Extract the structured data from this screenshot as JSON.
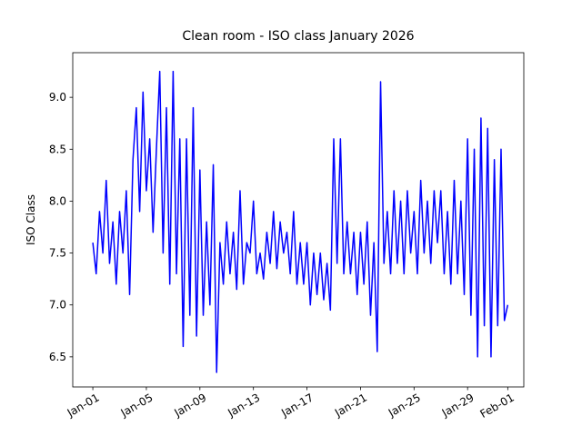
{
  "chart_data": {
    "type": "line",
    "title": "Clean room - ISO class January 2026",
    "y_label": "ISO Class",
    "color": "#0000ff",
    "x": [
      0,
      0.25,
      0.5,
      0.75,
      1,
      1.25,
      1.5,
      1.75,
      2,
      2.25,
      2.5,
      2.75,
      3,
      3.25,
      3.5,
      3.75,
      4,
      4.25,
      4.5,
      4.75,
      5,
      5.25,
      5.5,
      5.75,
      6,
      6.25,
      6.5,
      6.75,
      7,
      7.25,
      7.5,
      7.75,
      8,
      8.25,
      8.5,
      8.75,
      9,
      9.25,
      9.5,
      9.75,
      10,
      10.25,
      10.5,
      10.75,
      11,
      11.25,
      11.5,
      11.75,
      12,
      12.25,
      12.5,
      12.75,
      13,
      13.25,
      13.5,
      13.75,
      14,
      14.25,
      14.5,
      14.75,
      15,
      15.25,
      15.5,
      15.75,
      16,
      16.25,
      16.5,
      16.75,
      17,
      17.25,
      17.5,
      17.75,
      18,
      18.25,
      18.5,
      18.75,
      19,
      19.25,
      19.5,
      19.75,
      20,
      20.25,
      20.5,
      20.75,
      21,
      21.25,
      21.5,
      21.75,
      22,
      22.25,
      22.5,
      22.75,
      23,
      23.25,
      23.5,
      23.75,
      24,
      24.25,
      24.5,
      24.75,
      25,
      25.25,
      25.5,
      25.75,
      26,
      26.25,
      26.5,
      26.75,
      27,
      27.25,
      27.5,
      27.75,
      28,
      28.25,
      28.5,
      28.75,
      29,
      29.25,
      29.5,
      29.75,
      30,
      30.25,
      30.5,
      30.75,
      31
    ],
    "values": [
      7.6,
      7.3,
      7.9,
      7.5,
      8.2,
      7.4,
      7.8,
      7.2,
      7.9,
      7.5,
      8.1,
      7.1,
      8.4,
      8.9,
      7.9,
      9.05,
      8.1,
      8.6,
      7.7,
      8.5,
      9.25,
      7.5,
      8.9,
      7.2,
      9.25,
      7.3,
      8.6,
      6.6,
      8.6,
      6.9,
      8.9,
      6.7,
      8.3,
      6.9,
      7.8,
      7.0,
      8.35,
      6.35,
      7.6,
      7.2,
      7.8,
      7.3,
      7.7,
      7.15,
      8.1,
      7.2,
      7.6,
      7.5,
      8.0,
      7.3,
      7.5,
      7.25,
      7.7,
      7.4,
      7.9,
      7.35,
      7.8,
      7.5,
      7.7,
      7.3,
      7.9,
      7.2,
      7.6,
      7.2,
      7.6,
      7.0,
      7.5,
      7.1,
      7.5,
      7.05,
      7.4,
      6.95,
      8.6,
      7.4,
      8.6,
      7.3,
      7.8,
      7.3,
      7.7,
      7.1,
      7.7,
      7.2,
      7.8,
      6.9,
      7.6,
      6.55,
      9.15,
      7.4,
      7.9,
      7.3,
      8.1,
      7.4,
      8.0,
      7.3,
      8.1,
      7.5,
      7.9,
      7.3,
      8.2,
      7.5,
      8.0,
      7.4,
      8.1,
      7.6,
      8.1,
      7.3,
      7.9,
      7.2,
      8.2,
      7.3,
      8.0,
      7.1,
      8.6,
      6.9,
      8.5,
      6.5,
      8.8,
      6.8,
      8.7,
      6.5,
      8.4,
      6.8,
      8.5,
      6.85,
      7.0
    ],
    "xlim": [
      -1.5,
      32.2
    ],
    "xticks": [
      {
        "value": 0,
        "label": "Jan-01"
      },
      {
        "value": 4,
        "label": "Jan-05"
      },
      {
        "value": 8,
        "label": "Jan-09"
      },
      {
        "value": 12,
        "label": "Jan-13"
      },
      {
        "value": 16,
        "label": "Jan-17"
      },
      {
        "value": 20,
        "label": "Jan-21"
      },
      {
        "value": 24,
        "label": "Jan-25"
      },
      {
        "value": 28,
        "label": "Jan-29"
      },
      {
        "value": 31,
        "label": "Feb-01"
      }
    ],
    "ylim": [
      6.21,
      9.43
    ],
    "yticks": [
      6.5,
      {
        "value": 7,
        "label": "7.0"
      },
      7.5,
      {
        "value": 8,
        "label": "8.0"
      },
      8.5,
      {
        "value": 9,
        "label": "9.0"
      }
    ]
  }
}
